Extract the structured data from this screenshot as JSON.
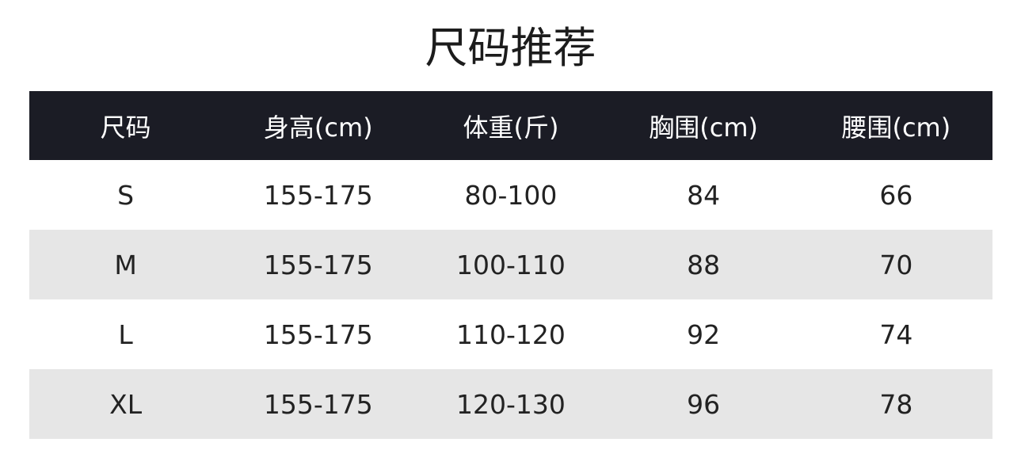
{
  "title": "尺码推荐",
  "table": {
    "headers": [
      "尺码",
      "身高(cm)",
      "体重(斤)",
      "胸围(cm)",
      "腰围(cm)"
    ],
    "rows": [
      [
        "S",
        "155-175",
        "80-100",
        "84",
        "66"
      ],
      [
        "M",
        "155-175",
        "100-110",
        "88",
        "70"
      ],
      [
        "L",
        "155-175",
        "110-120",
        "92",
        "74"
      ],
      [
        "XL",
        "155-175",
        "120-130",
        "96",
        "78"
      ]
    ]
  },
  "colors": {
    "header_bg": "#1b1c25",
    "alt_row_bg": "#e6e6e6"
  }
}
